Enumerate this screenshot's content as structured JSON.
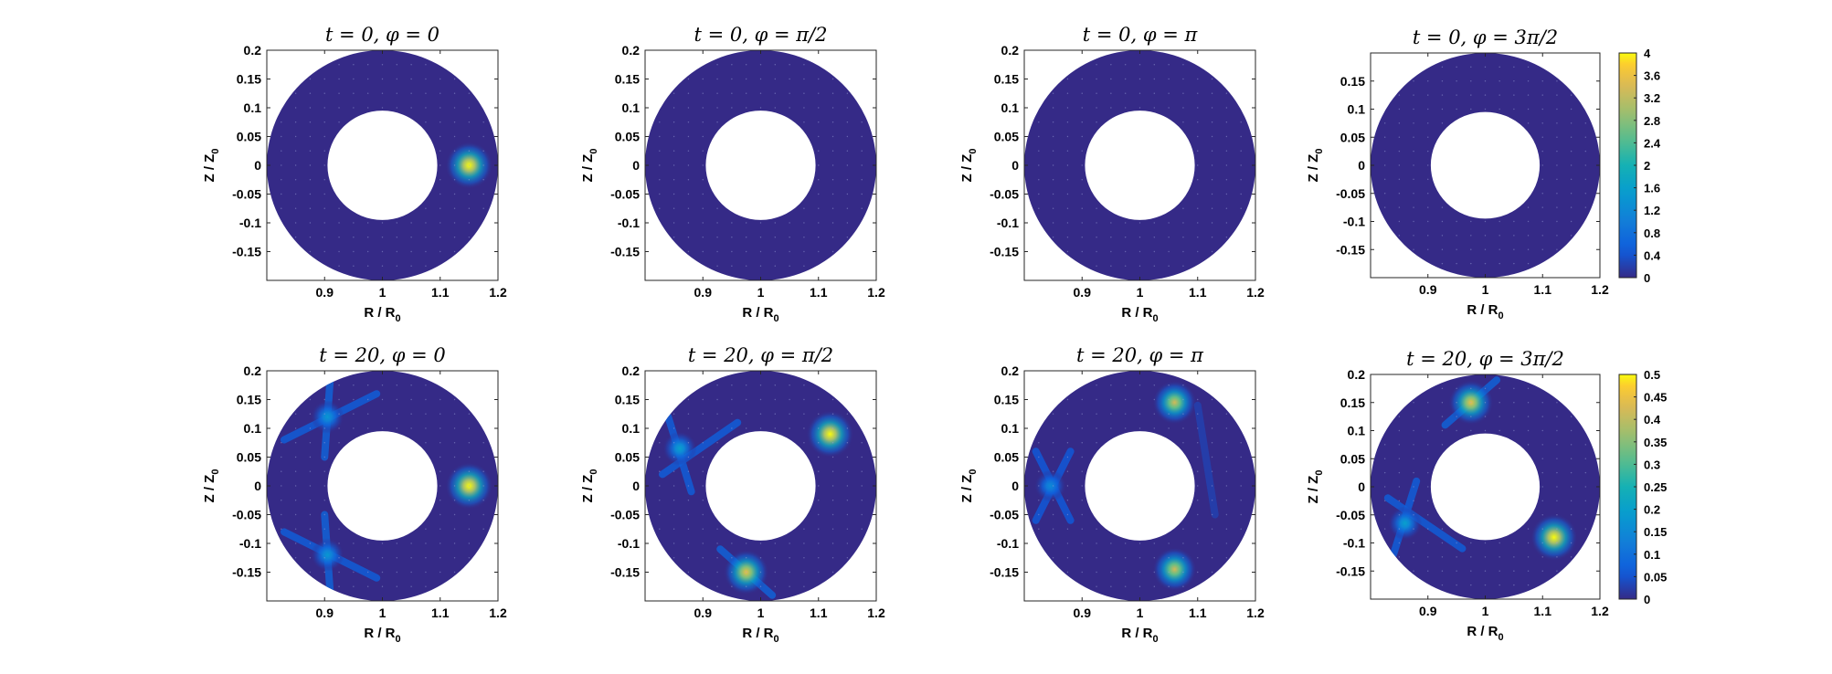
{
  "chart_data": [
    {
      "type": "heatmap",
      "title": "t = 0, φ = 0",
      "xlabel": "R / R",
      "xlabel_sub": "0",
      "ylabel": "Z / Z",
      "ylabel_sub": "0",
      "xlim": [
        0.8,
        1.2
      ],
      "ylim": [
        -0.2,
        0.2
      ],
      "xticks": [
        "0.9",
        "1",
        "1.1",
        "1.2"
      ],
      "yticks": [
        "-0.15",
        "-0.1",
        "-0.05",
        "0",
        "0.05",
        "0.1",
        "0.15",
        "0.2"
      ],
      "domain": {
        "shape": "annulus",
        "center": [
          1.0,
          0.0
        ],
        "inner_radius": 0.095,
        "outer_radius": 0.2
      },
      "color_range": [
        0,
        4
      ],
      "blobs": [
        {
          "R": 1.15,
          "Z": 0.0,
          "amplitude": 4.0
        }
      ],
      "streaks": []
    },
    {
      "type": "heatmap",
      "title": "t = 0, φ = π/2",
      "xlabel": "R / R",
      "xlabel_sub": "0",
      "ylabel": "Z / Z",
      "ylabel_sub": "0",
      "xlim": [
        0.8,
        1.2
      ],
      "ylim": [
        -0.2,
        0.2
      ],
      "xticks": [
        "0.9",
        "1",
        "1.1",
        "1.2"
      ],
      "yticks": [
        "-0.15",
        "-0.1",
        "-0.05",
        "0",
        "0.05",
        "0.1",
        "0.15",
        "0.2"
      ],
      "domain": {
        "shape": "annulus",
        "center": [
          1.0,
          0.0
        ],
        "inner_radius": 0.095,
        "outer_radius": 0.2
      },
      "color_range": [
        0,
        4
      ],
      "blobs": [],
      "streaks": []
    },
    {
      "type": "heatmap",
      "title": "t = 0, φ = π",
      "xlabel": "R / R",
      "xlabel_sub": "0",
      "ylabel": "Z / Z",
      "ylabel_sub": "0",
      "xlim": [
        0.8,
        1.2
      ],
      "ylim": [
        -0.2,
        0.2
      ],
      "xticks": [
        "0.9",
        "1",
        "1.1",
        "1.2"
      ],
      "yticks": [
        "-0.15",
        "-0.1",
        "-0.05",
        "0",
        "0.05",
        "0.1",
        "0.15",
        "0.2"
      ],
      "domain": {
        "shape": "annulus",
        "center": [
          1.0,
          0.0
        ],
        "inner_radius": 0.095,
        "outer_radius": 0.2
      },
      "color_range": [
        0,
        4
      ],
      "blobs": [],
      "streaks": []
    },
    {
      "type": "heatmap",
      "title": "t = 0, φ = 3π/2",
      "xlabel": "R / R",
      "xlabel_sub": "0",
      "ylabel": "Z / Z",
      "ylabel_sub": "0",
      "xlim": [
        0.8,
        1.2
      ],
      "ylim": [
        -0.2,
        0.2
      ],
      "xticks": [
        "0.9",
        "1",
        "1.1",
        "1.2"
      ],
      "yticks": [
        "-0.15",
        "-0.1",
        "-0.05",
        "0",
        "0.05",
        "0.1",
        "0.15"
      ],
      "domain": {
        "shape": "annulus",
        "center": [
          1.0,
          0.0
        ],
        "inner_radius": 0.095,
        "outer_radius": 0.2
      },
      "color_range": [
        0,
        4
      ],
      "blobs": [],
      "streaks": [],
      "colorbar": {
        "ticks": [
          "0",
          "0.4",
          "0.8",
          "1.2",
          "1.6",
          "2",
          "2.4",
          "2.8",
          "3.2",
          "3.6",
          "4"
        ]
      }
    },
    {
      "type": "heatmap",
      "title": "t = 20, φ = 0",
      "xlabel": "R / R",
      "xlabel_sub": "0",
      "ylabel": "Z / Z",
      "ylabel_sub": "0",
      "xlim": [
        0.8,
        1.2
      ],
      "ylim": [
        -0.2,
        0.2
      ],
      "xticks": [
        "0.9",
        "1",
        "1.1",
        "1.2"
      ],
      "yticks": [
        "-0.15",
        "-0.1",
        "-0.05",
        "0",
        "0.05",
        "0.1",
        "0.15",
        "0.2"
      ],
      "domain": {
        "shape": "annulus",
        "center": [
          1.0,
          0.0
        ],
        "inner_radius": 0.095,
        "outer_radius": 0.2
      },
      "color_range": [
        0,
        0.5
      ],
      "blobs": [
        {
          "R": 1.15,
          "Z": 0.0,
          "amplitude": 0.5
        },
        {
          "R": 0.905,
          "Z": 0.12,
          "amplitude": 0.18
        },
        {
          "R": 0.905,
          "Z": -0.12,
          "amplitude": 0.18
        }
      ],
      "streaks": [
        {
          "from": [
            0.83,
            0.08
          ],
          "to": [
            0.99,
            0.16
          ],
          "amplitude": 0.07
        },
        {
          "from": [
            0.9,
            0.05
          ],
          "to": [
            0.91,
            0.19
          ],
          "amplitude": 0.08
        },
        {
          "from": [
            0.83,
            -0.08
          ],
          "to": [
            0.99,
            -0.16
          ],
          "amplitude": 0.07
        },
        {
          "from": [
            0.9,
            -0.05
          ],
          "to": [
            0.91,
            -0.19
          ],
          "amplitude": 0.08
        }
      ]
    },
    {
      "type": "heatmap",
      "title": "t = 20, φ = π/2",
      "xlabel": "R / R",
      "xlabel_sub": "0",
      "ylabel": "Z / Z",
      "ylabel_sub": "0",
      "xlim": [
        0.8,
        1.2
      ],
      "ylim": [
        -0.2,
        0.2
      ],
      "xticks": [
        "0.9",
        "1",
        "1.1",
        "1.2"
      ],
      "yticks": [
        "-0.15",
        "-0.1",
        "-0.05",
        "0",
        "0.05",
        "0.1",
        "0.15",
        "0.2"
      ],
      "domain": {
        "shape": "annulus",
        "center": [
          1.0,
          0.0
        ],
        "inner_radius": 0.095,
        "outer_radius": 0.2
      },
      "color_range": [
        0,
        0.5
      ],
      "blobs": [
        {
          "R": 1.12,
          "Z": 0.09,
          "amplitude": 0.5
        },
        {
          "R": 0.975,
          "Z": -0.15,
          "amplitude": 0.45
        },
        {
          "R": 0.86,
          "Z": 0.065,
          "amplitude": 0.2
        }
      ],
      "streaks": [
        {
          "from": [
            0.83,
            0.02
          ],
          "to": [
            0.96,
            0.11
          ],
          "amplitude": 0.07
        },
        {
          "from": [
            0.84,
            0.12
          ],
          "to": [
            0.88,
            -0.01
          ],
          "amplitude": 0.07
        },
        {
          "from": [
            0.93,
            -0.11
          ],
          "to": [
            1.02,
            -0.19
          ],
          "amplitude": 0.08
        }
      ]
    },
    {
      "type": "heatmap",
      "title": "t = 20, φ = π",
      "xlabel": "R / R",
      "xlabel_sub": "0",
      "ylabel": "Z / Z",
      "ylabel_sub": "0",
      "xlim": [
        0.8,
        1.2
      ],
      "ylim": [
        -0.2,
        0.2
      ],
      "xticks": [
        "0.9",
        "1",
        "1.1",
        "1.2"
      ],
      "yticks": [
        "-0.15",
        "-0.1",
        "-0.05",
        "0",
        "0.05",
        "0.1",
        "0.15",
        "0.2"
      ],
      "domain": {
        "shape": "annulus",
        "center": [
          1.0,
          0.0
        ],
        "inner_radius": 0.095,
        "outer_radius": 0.2
      },
      "color_range": [
        0,
        0.5
      ],
      "blobs": [
        {
          "R": 1.06,
          "Z": 0.145,
          "amplitude": 0.42
        },
        {
          "R": 1.06,
          "Z": -0.145,
          "amplitude": 0.42
        },
        {
          "R": 0.845,
          "Z": 0.0,
          "amplitude": 0.15
        }
      ],
      "streaks": [
        {
          "from": [
            0.82,
            0.06
          ],
          "to": [
            0.88,
            -0.06
          ],
          "amplitude": 0.06
        },
        {
          "from": [
            0.82,
            -0.06
          ],
          "to": [
            0.88,
            0.06
          ],
          "amplitude": 0.06
        },
        {
          "from": [
            1.1,
            0.14
          ],
          "to": [
            1.13,
            -0.05
          ],
          "amplitude": 0.03
        }
      ]
    },
    {
      "type": "heatmap",
      "title": "t = 20, φ = 3π/2",
      "xlabel": "R / R",
      "xlabel_sub": "0",
      "ylabel": "Z / Z",
      "ylabel_sub": "0",
      "xlim": [
        0.8,
        1.2
      ],
      "ylim": [
        -0.2,
        0.2
      ],
      "xticks": [
        "0.9",
        "1",
        "1.1",
        "1.2"
      ],
      "yticks": [
        "-0.15",
        "-0.1",
        "-0.05",
        "0",
        "0.05",
        "0.1",
        "0.15",
        "0.2"
      ],
      "domain": {
        "shape": "annulus",
        "center": [
          1.0,
          0.0
        ],
        "inner_radius": 0.095,
        "outer_radius": 0.2
      },
      "color_range": [
        0,
        0.5
      ],
      "blobs": [
        {
          "R": 1.12,
          "Z": -0.09,
          "amplitude": 0.5
        },
        {
          "R": 0.975,
          "Z": 0.15,
          "amplitude": 0.45
        },
        {
          "R": 0.86,
          "Z": -0.065,
          "amplitude": 0.2
        }
      ],
      "streaks": [
        {
          "from": [
            0.83,
            -0.02
          ],
          "to": [
            0.96,
            -0.11
          ],
          "amplitude": 0.07
        },
        {
          "from": [
            0.84,
            -0.12
          ],
          "to": [
            0.88,
            0.01
          ],
          "amplitude": 0.07
        },
        {
          "from": [
            0.93,
            0.11
          ],
          "to": [
            1.02,
            0.19
          ],
          "amplitude": 0.08
        }
      ],
      "colorbar": {
        "ticks": [
          "0",
          "0.05",
          "0.1",
          "0.15",
          "0.2",
          "0.25",
          "0.3",
          "0.35",
          "0.4",
          "0.45",
          "0.5"
        ]
      }
    }
  ]
}
